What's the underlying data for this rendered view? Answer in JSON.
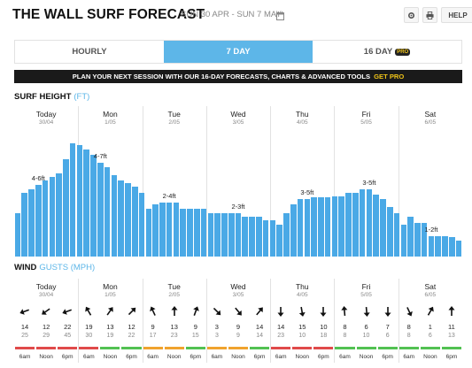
{
  "header": {
    "title": "THE WALL SURF FORECAST",
    "date_range": "SUN 30 APR - SUN 7 MAY",
    "help_label": "HELP"
  },
  "tabs": [
    {
      "label": "HOURLY",
      "active": false
    },
    {
      "label": "7 DAY",
      "active": true
    },
    {
      "label": "16 DAY",
      "active": false,
      "badge": "PRO"
    }
  ],
  "promo": {
    "text": "PLAN YOUR NEXT SESSION WITH OUR 16-DAY FORECASTS, CHARTS & ADVANCED TOOLS",
    "link": "GET PRO"
  },
  "surf": {
    "title": "SURF HEIGHT",
    "unit": "(FT)"
  },
  "wind": {
    "title": "WIND",
    "unit": "GUSTS (MPH)"
  },
  "days": [
    {
      "name": "Today",
      "date": "30/04"
    },
    {
      "name": "Mon",
      "date": "1/05"
    },
    {
      "name": "Tue",
      "date": "2/05"
    },
    {
      "name": "Wed",
      "date": "3/05"
    },
    {
      "name": "Thu",
      "date": "4/05"
    },
    {
      "name": "Fri",
      "date": "5/05"
    },
    {
      "name": "Sat",
      "date": "6/05"
    }
  ],
  "chart_data": {
    "type": "bar",
    "title": "SURF HEIGHT",
    "ylabel": "FT",
    "relative_heights": [
      0.27,
      0.4,
      0.42,
      0.45,
      0.48,
      0.5,
      0.52,
      0.61,
      0.71,
      0.7,
      0.67,
      0.64,
      0.59,
      0.56,
      0.51,
      0.48,
      0.46,
      0.44,
      0.4,
      0.3,
      0.33,
      0.34,
      0.34,
      0.34,
      0.3,
      0.3,
      0.3,
      0.3,
      0.27,
      0.27,
      0.27,
      0.27,
      0.27,
      0.25,
      0.25,
      0.25,
      0.23,
      0.23,
      0.2,
      0.27,
      0.33,
      0.36,
      0.36,
      0.37,
      0.37,
      0.37,
      0.38,
      0.38,
      0.4,
      0.4,
      0.42,
      0.42,
      0.39,
      0.36,
      0.31,
      0.27,
      0.2,
      0.25,
      0.21,
      0.21,
      0.13,
      0.13,
      0.13,
      0.12,
      0.1
    ],
    "range_labels": [
      {
        "text": "4-6ft",
        "bar": 3
      },
      {
        "text": "4-7ft",
        "bar": 12
      },
      {
        "text": "2-4ft",
        "bar": 22
      },
      {
        "text": "2-3ft",
        "bar": 32
      },
      {
        "text": "3-5ft",
        "bar": 42
      },
      {
        "text": "3-5ft",
        "bar": 51
      },
      {
        "text": "1-2ft",
        "bar": 60
      }
    ]
  },
  "wind_data": [
    {
      "dir": 250,
      "speed": "14",
      "gust": "25",
      "rating": "bad"
    },
    {
      "dir": 235,
      "speed": "12",
      "gust": "29",
      "rating": "bad"
    },
    {
      "dir": 250,
      "speed": "22",
      "gust": "45",
      "rating": "bad"
    },
    {
      "dir": 330,
      "speed": "19",
      "gust": "30",
      "rating": "bad"
    },
    {
      "dir": 35,
      "speed": "13",
      "gust": "19",
      "rating": "good"
    },
    {
      "dir": 45,
      "speed": "12",
      "gust": "22",
      "rating": "good"
    },
    {
      "dir": 335,
      "speed": "9",
      "gust": "17",
      "rating": "poor"
    },
    {
      "dir": 0,
      "speed": "13",
      "gust": "23",
      "rating": "poor"
    },
    {
      "dir": 20,
      "speed": "9",
      "gust": "15",
      "rating": "good"
    },
    {
      "dir": 135,
      "speed": "3",
      "gust": "3",
      "rating": "poor"
    },
    {
      "dir": 140,
      "speed": "9",
      "gust": "9",
      "rating": "poor"
    },
    {
      "dir": 40,
      "speed": "14",
      "gust": "14",
      "rating": "good"
    },
    {
      "dir": 180,
      "speed": "14",
      "gust": "23",
      "rating": "bad"
    },
    {
      "dir": 170,
      "speed": "15",
      "gust": "10",
      "rating": "bad"
    },
    {
      "dir": 180,
      "speed": "10",
      "gust": "18",
      "rating": "bad"
    },
    {
      "dir": 355,
      "speed": "8",
      "gust": "8",
      "rating": "good"
    },
    {
      "dir": 175,
      "speed": "6",
      "gust": "10",
      "rating": "good"
    },
    {
      "dir": 180,
      "speed": "7",
      "gust": "6",
      "rating": "good"
    },
    {
      "dir": 155,
      "speed": "8",
      "gust": "8",
      "rating": "good"
    },
    {
      "dir": 30,
      "speed": "1",
      "gust": "6",
      "rating": "good"
    },
    {
      "dir": 0,
      "speed": "11",
      "gust": "13",
      "rating": "good"
    }
  ],
  "time_labels": [
    "6am",
    "Noon",
    "6pm"
  ],
  "colors": {
    "accent": "#5db6e8",
    "bar": "#4aa9e6",
    "good": "#52c152",
    "poor": "#f0a32e",
    "bad": "#e04a4a",
    "pro": "#f0c419"
  }
}
